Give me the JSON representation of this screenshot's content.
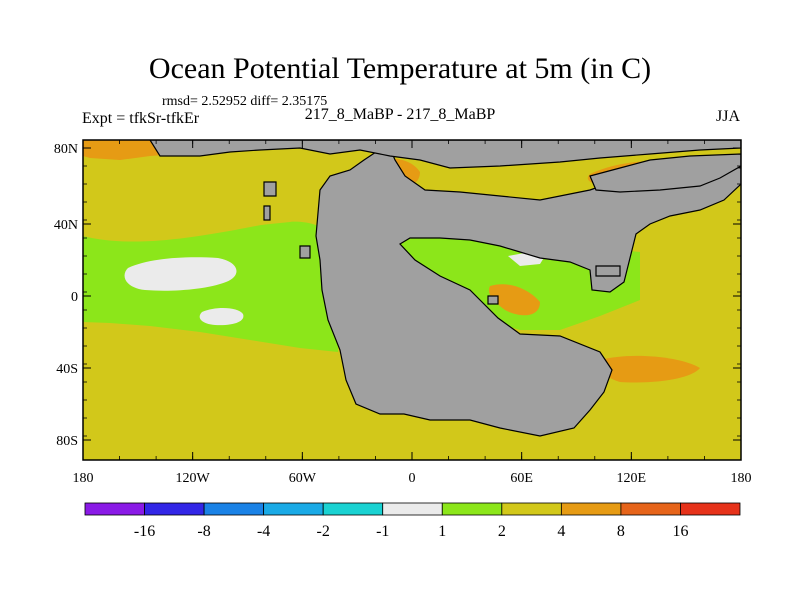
{
  "title": "Ocean Potential Temperature at 5m (in C)",
  "stats": "rmsd= 2.52952 diff= 2.35175",
  "experiment": "Expt = tfkSr-tfkEr",
  "case_label": "217_8_MaBP - 217_8_MaBP",
  "season": "JJA",
  "axes": {
    "y_ticks": [
      "80N",
      "40N",
      "0",
      "40S",
      "80S"
    ],
    "x_ticks": [
      "180",
      "120W",
      "60W",
      "0",
      "60E",
      "120E",
      "180"
    ]
  },
  "colorbar": {
    "colors": [
      "#8a1ae6",
      "#3226e6",
      "#1a82e6",
      "#1aaae6",
      "#1ad2d2",
      "#ebebeb",
      "#8ce61a",
      "#d2c81a",
      "#e69b14",
      "#e6641a",
      "#e6321a"
    ],
    "labels": [
      "-16",
      "-8",
      "-4",
      "-2",
      "-1",
      "1",
      "2",
      "4",
      "8",
      "16"
    ]
  },
  "fields": {
    "land": "#a0a0a0",
    "range_2_4": "#d2c81a",
    "range_1_2": "#8ce61a",
    "range_4_8": "#e69b14",
    "range_m1_1": "#ebebeb"
  }
}
